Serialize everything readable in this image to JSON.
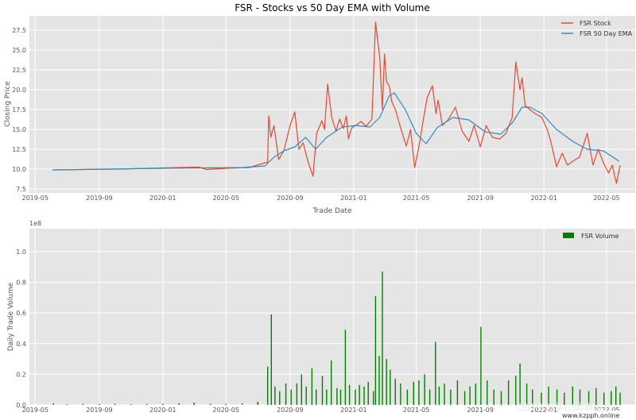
{
  "colors": {
    "stock": "#E24A33",
    "ema": "#348ABD",
    "volume": "#008000",
    "panel_bg": "#E5E5E5",
    "grid": "#FFFFFF"
  },
  "x_tick_labels": [
    "2019-05",
    "2019-09",
    "2020-01",
    "2020-05",
    "2020-09",
    "2021-01",
    "2021-05",
    "2021-09",
    "2022-01",
    "2022-05"
  ],
  "watermark": {
    "csdn": "CSDN @买山烟酒prss",
    "site": "www.kzpph.online"
  },
  "chart_data": [
    {
      "type": "line",
      "title": "FSR - Stocks vs 50 Day EMA with Volume",
      "xlabel": "Trade Date",
      "ylabel": "Closing Price",
      "xlim": [
        "2019-04-20",
        "2022-06-25"
      ],
      "ylim": [
        7.0,
        29.3
      ],
      "y_ticks": [
        7.5,
        10.0,
        12.5,
        15.0,
        17.5,
        20.0,
        22.5,
        25.0,
        27.5
      ],
      "y_tick_labels": [
        "7.5",
        "10.0",
        "12.5",
        "15.0",
        "17.5",
        "20.0",
        "22.5",
        "25.0",
        "27.5"
      ],
      "grid": true,
      "legend_position": "top-right",
      "series": [
        {
          "name": "FSR Stock",
          "color": "#E24A33",
          "x": [
            "2019-06-03",
            "2019-08-01",
            "2019-10-01",
            "2019-12-01",
            "2020-02-01",
            "2020-03-10",
            "2020-03-25",
            "2020-05-01",
            "2020-06-15",
            "2020-07-20",
            "2020-07-22",
            "2020-07-26",
            "2020-08-01",
            "2020-08-10",
            "2020-08-20",
            "2020-09-01",
            "2020-09-10",
            "2020-09-18",
            "2020-09-26",
            "2020-10-05",
            "2020-10-15",
            "2020-10-22",
            "2020-11-01",
            "2020-11-06",
            "2020-11-12",
            "2020-11-20",
            "2020-11-28",
            "2020-12-05",
            "2020-12-12",
            "2020-12-18",
            "2020-12-22",
            "2020-12-28",
            "2021-01-05",
            "2021-01-15",
            "2021-01-25",
            "2021-02-05",
            "2021-02-12",
            "2021-02-20",
            "2021-02-25",
            "2021-03-01",
            "2021-03-05",
            "2021-03-10",
            "2021-03-15",
            "2021-03-22",
            "2021-04-01",
            "2021-04-12",
            "2021-04-20",
            "2021-04-28",
            "2021-05-08",
            "2021-05-14",
            "2021-05-22",
            "2021-06-01",
            "2021-06-08",
            "2021-06-12",
            "2021-06-20",
            "2021-07-01",
            "2021-07-15",
            "2021-07-28",
            "2021-08-10",
            "2021-08-20",
            "2021-09-01",
            "2021-09-12",
            "2021-09-24",
            "2021-10-08",
            "2021-10-20",
            "2021-11-01",
            "2021-11-08",
            "2021-11-16",
            "2021-11-20",
            "2021-11-26",
            "2021-12-05",
            "2021-12-15",
            "2021-12-28",
            "2022-01-07",
            "2022-01-14",
            "2022-01-25",
            "2022-02-05",
            "2022-02-15",
            "2022-02-25",
            "2022-03-10",
            "2022-03-25",
            "2022-04-05",
            "2022-04-15",
            "2022-04-25",
            "2022-05-05",
            "2022-05-12",
            "2022-05-20",
            "2022-05-27"
          ],
          "y": [
            9.9,
            9.95,
            10.0,
            10.1,
            10.2,
            10.25,
            9.95,
            10.1,
            10.2,
            10.9,
            16.7,
            14.0,
            15.5,
            11.2,
            12.3,
            15.5,
            17.2,
            12.5,
            13.3,
            11.0,
            9.1,
            14.5,
            16.1,
            15.0,
            20.7,
            16.5,
            14.8,
            16.3,
            15.1,
            16.7,
            13.8,
            15.2,
            15.5,
            16.0,
            15.4,
            16.3,
            28.5,
            24.0,
            17.5,
            24.5,
            21.0,
            20.5,
            18.5,
            17.5,
            15.2,
            12.9,
            15.0,
            10.2,
            13.5,
            16.0,
            19.0,
            20.5,
            17.0,
            18.7,
            15.5,
            16.2,
            17.8,
            14.8,
            13.5,
            15.5,
            12.8,
            15.5,
            14.0,
            13.8,
            14.5,
            16.5,
            23.5,
            20.0,
            21.5,
            18.0,
            17.5,
            17.0,
            16.5,
            15.0,
            13.5,
            10.3,
            12.0,
            10.5,
            11.0,
            11.5,
            14.5,
            10.5,
            12.5,
            10.8,
            9.5,
            10.5,
            8.2,
            10.5
          ]
        },
        {
          "name": "FSR 50 Day EMA",
          "color": "#348ABD",
          "x": [
            "2019-06-03",
            "2020-01-01",
            "2020-06-01",
            "2020-07-15",
            "2020-08-01",
            "2020-08-20",
            "2020-09-10",
            "2020-10-01",
            "2020-10-20",
            "2020-11-10",
            "2020-12-10",
            "2021-01-05",
            "2021-02-01",
            "2021-02-20",
            "2021-03-10",
            "2021-03-20",
            "2021-04-10",
            "2021-05-01",
            "2021-05-20",
            "2021-06-10",
            "2021-07-10",
            "2021-08-10",
            "2021-09-10",
            "2021-10-10",
            "2021-11-01",
            "2021-11-20",
            "2021-12-05",
            "2021-12-28",
            "2022-01-25",
            "2022-02-25",
            "2022-03-25",
            "2022-04-25",
            "2022-05-25"
          ],
          "y": [
            9.9,
            10.1,
            10.2,
            10.4,
            11.5,
            12.3,
            12.8,
            14.0,
            12.5,
            14.0,
            15.3,
            15.5,
            15.3,
            16.5,
            19.2,
            19.6,
            17.5,
            14.5,
            13.2,
            15.2,
            16.5,
            16.2,
            14.7,
            14.4,
            15.8,
            17.8,
            17.8,
            17.0,
            15.0,
            13.5,
            12.5,
            12.3,
            11.0
          ]
        }
      ]
    },
    {
      "type": "bar",
      "xlabel": "",
      "ylabel": "Daily Trade Volume",
      "y_offset_label": "1e8",
      "xlim": [
        "2019-04-20",
        "2022-06-25"
      ],
      "ylim": [
        0,
        1.15
      ],
      "y_ticks": [
        0.0,
        0.2,
        0.4,
        0.6,
        0.8,
        1.0
      ],
      "y_tick_labels": [
        "0.0",
        "0.2",
        "0.4",
        "0.6",
        "0.8",
        "1.0"
      ],
      "grid": true,
      "legend_position": "top-right",
      "series": [
        {
          "name": "FSR Volume",
          "color": "#008000",
          "x": [
            "2019-06-05",
            "2019-07-01",
            "2019-08-01",
            "2019-09-01",
            "2019-10-01",
            "2019-11-01",
            "2019-12-01",
            "2020-01-01",
            "2020-02-01",
            "2020-03-01",
            "2020-04-01",
            "2020-05-01",
            "2020-06-01",
            "2020-07-01",
            "2020-07-20",
            "2020-07-27",
            "2020-08-03",
            "2020-08-12",
            "2020-08-24",
            "2020-09-03",
            "2020-09-14",
            "2020-09-23",
            "2020-10-02",
            "2020-10-13",
            "2020-10-21",
            "2020-11-02",
            "2020-11-10",
            "2020-11-19",
            "2020-11-30",
            "2020-12-07",
            "2020-12-16",
            "2020-12-24",
            "2021-01-04",
            "2021-01-12",
            "2021-01-21",
            "2021-01-29",
            "2021-02-08",
            "2021-02-12",
            "2021-02-19",
            "2021-02-25",
            "2021-03-05",
            "2021-03-12",
            "2021-03-22",
            "2021-04-01",
            "2021-04-14",
            "2021-04-26",
            "2021-05-06",
            "2021-05-17",
            "2021-05-27",
            "2021-06-07",
            "2021-06-14",
            "2021-06-24",
            "2021-07-06",
            "2021-07-19",
            "2021-08-02",
            "2021-08-12",
            "2021-08-23",
            "2021-09-02",
            "2021-09-14",
            "2021-09-27",
            "2021-10-11",
            "2021-10-25",
            "2021-11-08",
            "2021-11-16",
            "2021-11-29",
            "2021-12-10",
            "2021-12-27",
            "2022-01-10",
            "2022-01-26",
            "2022-02-09",
            "2022-02-25",
            "2022-03-11",
            "2022-03-28",
            "2022-04-11",
            "2022-04-26",
            "2022-05-10",
            "2022-05-19",
            "2022-05-27"
          ],
          "values": [
            0.01,
            0.005,
            0.008,
            0.006,
            0.007,
            0.005,
            0.006,
            0.008,
            0.01,
            0.015,
            0.008,
            0.006,
            0.01,
            0.02,
            0.25,
            0.59,
            0.12,
            0.09,
            0.14,
            0.1,
            0.14,
            0.2,
            0.12,
            0.24,
            0.1,
            0.19,
            0.1,
            0.29,
            0.11,
            0.1,
            0.49,
            0.13,
            0.1,
            0.13,
            0.12,
            0.15,
            0.09,
            0.71,
            0.32,
            0.87,
            0.3,
            0.23,
            0.17,
            0.14,
            0.1,
            0.15,
            0.16,
            0.2,
            0.1,
            0.41,
            0.12,
            0.14,
            0.1,
            0.16,
            0.09,
            0.12,
            0.14,
            0.51,
            0.16,
            0.1,
            0.09,
            0.16,
            0.19,
            0.27,
            0.14,
            0.1,
            0.08,
            0.12,
            0.1,
            0.08,
            0.12,
            0.1,
            0.09,
            0.11,
            0.08,
            0.09,
            0.12,
            0.08
          ]
        }
      ]
    }
  ]
}
